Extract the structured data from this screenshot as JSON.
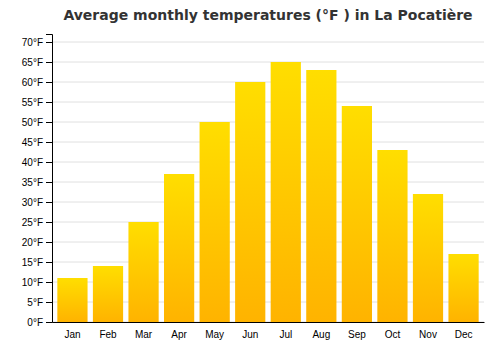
{
  "chart_data": {
    "type": "bar",
    "title": "Average monthly temperatures (°F ) in La Pocatière",
    "categories": [
      "Jan",
      "Feb",
      "Mar",
      "Apr",
      "May",
      "Jun",
      "Jul",
      "Aug",
      "Sep",
      "Oct",
      "Nov",
      "Dec"
    ],
    "values": [
      11,
      14,
      25,
      37,
      50,
      60,
      65,
      63,
      54,
      43,
      32,
      17
    ],
    "color": "#FFB300",
    "ylim": [
      0,
      72
    ],
    "yticks": [
      {
        "value": 0,
        "label": "0°F"
      },
      {
        "value": 5,
        "label": "5°F"
      },
      {
        "value": 10,
        "label": "10°F"
      },
      {
        "value": 15,
        "label": "15°F"
      },
      {
        "value": 20,
        "label": "20°F"
      },
      {
        "value": 25,
        "label": "25°F"
      },
      {
        "value": 30,
        "label": "30°F"
      },
      {
        "value": 35,
        "label": "35°F"
      },
      {
        "value": 40,
        "label": "40°F"
      },
      {
        "value": 45,
        "label": "45°F"
      },
      {
        "value": 50,
        "label": "50°F"
      },
      {
        "value": 55,
        "label": "55°F"
      },
      {
        "value": 60,
        "label": "60°F"
      },
      {
        "value": 65,
        "label": "65°F"
      },
      {
        "value": 70,
        "label": "70°F"
      }
    ],
    "grid": true
  }
}
